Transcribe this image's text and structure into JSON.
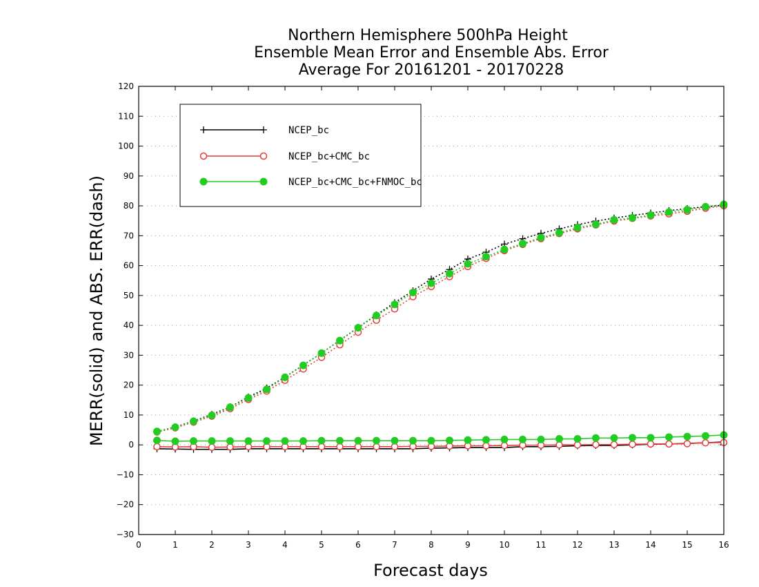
{
  "chart_data": {
    "type": "line",
    "title_lines": [
      "Northern Hemisphere 500hPa Height",
      "Ensemble Mean Error and Ensemble Abs. Error",
      "Average For 20161201 - 20170228"
    ],
    "xlabel": "Forecast days",
    "ylabel": "MERR(solid) and ABS. ERR(dash)",
    "xlim": [
      0,
      16
    ],
    "ylim": [
      -30,
      120
    ],
    "x_ticks": [
      0,
      1,
      2,
      3,
      4,
      5,
      6,
      7,
      8,
      9,
      10,
      11,
      12,
      13,
      14,
      15,
      16
    ],
    "y_ticks": [
      -30,
      -20,
      -10,
      0,
      10,
      20,
      30,
      40,
      50,
      60,
      70,
      80,
      90,
      100,
      110,
      120
    ],
    "grid": "dotted horizontal",
    "legend_placement": "top-left",
    "x": [
      0.5,
      1,
      1.5,
      2,
      2.5,
      3,
      3.5,
      4,
      4.5,
      5,
      5.5,
      6,
      6.5,
      7,
      7.5,
      8,
      8.5,
      9,
      9.5,
      10,
      10.5,
      11,
      11.5,
      12,
      12.5,
      13,
      13.5,
      14,
      14.5,
      15,
      15.5,
      16
    ],
    "series": [
      {
        "name": "NCEP_bc",
        "color": "#000000",
        "marker": "plus",
        "merr": [
          -1.3,
          -1.4,
          -1.5,
          -1.5,
          -1.5,
          -1.3,
          -1.3,
          -1.3,
          -1.3,
          -1.3,
          -1.3,
          -1.3,
          -1.3,
          -1.3,
          -1.3,
          -1.1,
          -1.0,
          -0.9,
          -0.9,
          -0.9,
          -0.6,
          -0.6,
          -0.5,
          -0.3,
          -0.2,
          -0.2,
          0.0,
          0.2,
          0.3,
          0.5,
          0.7,
          1.0
        ],
        "abs_err": [
          4.5,
          6.0,
          8.0,
          10.2,
          12.7,
          16.0,
          19.0,
          22.7,
          26.7,
          30.7,
          35.0,
          39.3,
          43.5,
          47.6,
          51.6,
          55.5,
          58.7,
          62.2,
          64.5,
          67.2,
          69.0,
          70.8,
          72.3,
          73.7,
          74.9,
          75.9,
          76.8,
          77.6,
          78.4,
          79.1,
          79.7,
          80.2
        ]
      },
      {
        "name": "NCEP_bc+CMC_bc",
        "color": "#e83a3a",
        "marker": "open-circle",
        "merr": [
          -0.6,
          -0.7,
          -0.6,
          -0.8,
          -0.7,
          -0.6,
          -0.6,
          -0.6,
          -0.6,
          -0.6,
          -0.6,
          -0.6,
          -0.6,
          -0.6,
          -0.5,
          -0.5,
          -0.4,
          -0.3,
          -0.3,
          -0.2,
          -0.1,
          -0.1,
          0.0,
          0.0,
          0.1,
          0.1,
          0.2,
          0.3,
          0.3,
          0.4,
          0.7,
          0.8
        ],
        "abs_err": [
          4.3,
          5.7,
          7.6,
          9.6,
          12.1,
          15.2,
          18.0,
          21.6,
          25.4,
          29.3,
          33.5,
          37.7,
          41.7,
          45.5,
          49.6,
          53.0,
          56.3,
          59.7,
          62.4,
          65.0,
          67.1,
          69.0,
          70.7,
          72.3,
          73.6,
          74.9,
          75.8,
          76.6,
          77.3,
          78.2,
          79.2,
          80.0
        ]
      },
      {
        "name": "NCEP_bc+CMC_bc+FNMOC_bc",
        "color": "#22cc22",
        "marker": "filled-circle",
        "merr": [
          1.5,
          1.2,
          1.3,
          1.3,
          1.3,
          1.3,
          1.3,
          1.3,
          1.3,
          1.4,
          1.4,
          1.4,
          1.4,
          1.4,
          1.4,
          1.4,
          1.5,
          1.6,
          1.7,
          1.8,
          1.8,
          1.8,
          2.0,
          2.0,
          2.3,
          2.3,
          2.4,
          2.4,
          2.6,
          2.8,
          3.0,
          3.3
        ],
        "abs_err": [
          4.5,
          5.9,
          7.9,
          9.9,
          12.6,
          15.7,
          18.6,
          22.6,
          26.6,
          30.7,
          34.9,
          39.2,
          43.3,
          47.0,
          51.0,
          54.1,
          57.3,
          60.6,
          63.0,
          65.4,
          67.4,
          69.4,
          71.0,
          72.7,
          73.8,
          75.3,
          76.0,
          76.9,
          77.9,
          78.7,
          79.7,
          80.5
        ]
      }
    ]
  }
}
